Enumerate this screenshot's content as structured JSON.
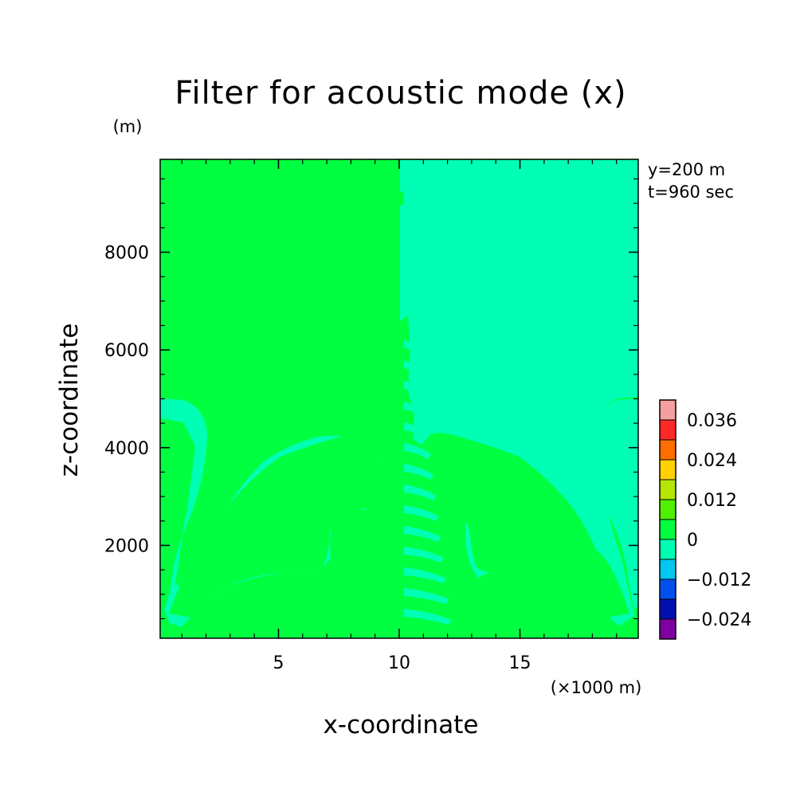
{
  "chart_data": {
    "type": "heatmap",
    "title": "Filter for acoustic mode (x)",
    "xlabel": "x-coordinate",
    "ylabel": "z-coordinate",
    "x_unit": "(×1000 m)",
    "y_unit": "(m)",
    "annotations": [
      "y=200 m",
      "t=960 sec"
    ],
    "xlim": [
      0.1,
      19.9
    ],
    "ylim": [
      100,
      9900
    ],
    "x_ticks": [
      5,
      10,
      15
    ],
    "y_ticks": [
      2000,
      4000,
      6000,
      8000
    ],
    "colorbar": {
      "levels": [
        -0.036,
        -0.024,
        -0.018,
        -0.012,
        -0.006,
        0,
        0.006,
        0.012,
        0.018,
        0.024,
        0.03,
        0.036,
        0.042
      ],
      "colors": [
        "#7f00a0",
        "#0010b0",
        "#0050f0",
        "#00c8f0",
        "#00ffb4",
        "#00ff41",
        "#50f000",
        "#b4e600",
        "#ffd200",
        "#ff6e00",
        "#ff2828",
        "#f5a0a0"
      ],
      "tick_labels": [
        "-0.024",
        "-0.012",
        "0",
        "0.012",
        "0.024",
        "0.036"
      ]
    },
    "field_colors": {
      "positive": "#00ff41",
      "negative": "#00ffb4"
    }
  }
}
